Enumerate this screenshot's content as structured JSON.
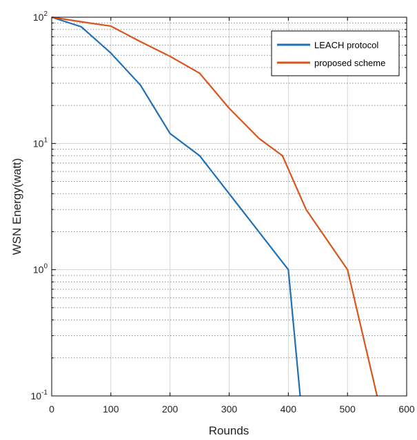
{
  "chart_data": {
    "type": "line",
    "xlabel": "Rounds",
    "ylabel": "WSN Energy(watt)",
    "xlim": [
      0,
      600
    ],
    "ylim": [
      0.1,
      100
    ],
    "yscale": "log",
    "grid": true,
    "legend_position": "top-right",
    "xticks": [
      "0",
      "100",
      "200",
      "300",
      "400",
      "500",
      "600"
    ],
    "yticks": [
      {
        "base": "10",
        "exp": "-1"
      },
      {
        "base": "10",
        "exp": "0"
      },
      {
        "base": "10",
        "exp": "1"
      },
      {
        "base": "10",
        "exp": "2"
      }
    ],
    "series": [
      {
        "name": "LEACH protocol",
        "color": "#1f6fb6",
        "x": [
          0,
          50,
          100,
          150,
          200,
          250,
          300,
          350,
          400,
          420
        ],
        "y": [
          100,
          84,
          52,
          29,
          12,
          8,
          4,
          2,
          1,
          0.1
        ]
      },
      {
        "name": "proposed scheme",
        "color": "#d8541c",
        "x": [
          0,
          50,
          100,
          150,
          200,
          250,
          300,
          350,
          390,
          430,
          500,
          550
        ],
        "y": [
          100,
          92,
          85,
          64,
          49,
          36,
          19,
          11,
          8,
          3,
          1,
          0.1
        ]
      }
    ]
  }
}
